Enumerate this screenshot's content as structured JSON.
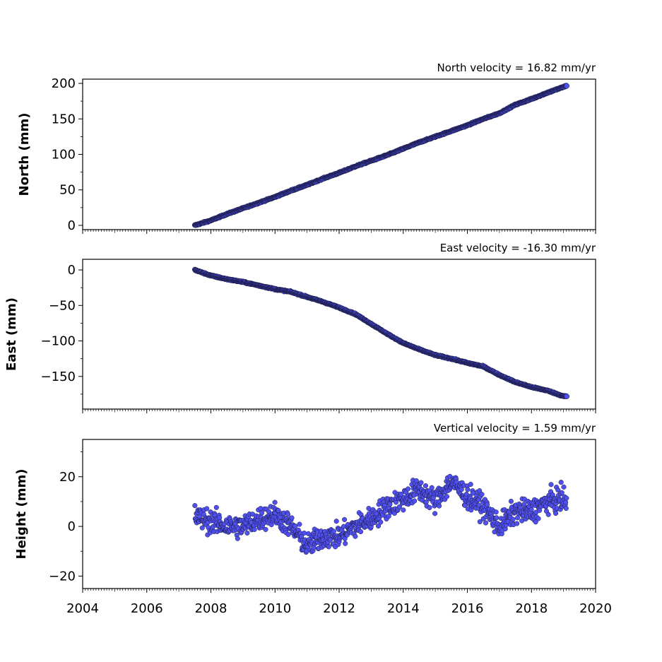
{
  "chart_data": [
    {
      "type": "scatter",
      "title": "North velocity = 16.82 mm/yr",
      "xlabel": "",
      "ylabel": "North (mm)",
      "xlim": [
        2004,
        2020
      ],
      "ylim": [
        -6,
        206
      ],
      "yticks": [
        0,
        50,
        100,
        150,
        200
      ],
      "ytick_labels": [
        "0",
        "50",
        "100",
        "150",
        "200"
      ],
      "grid": false,
      "marker_color": "#5050f0",
      "marker_edge": "#1a1a40",
      "series": [
        {
          "x": [
            2007.5,
            2008.0,
            2008.5,
            2009.0,
            2009.5,
            2010.0,
            2010.5,
            2011.0,
            2011.5,
            2012.0,
            2012.5,
            2013.0,
            2013.5,
            2014.0,
            2014.5,
            2015.0,
            2015.5,
            2016.0,
            2016.5,
            2017.0,
            2017.5,
            2018.0,
            2018.5,
            2019.0,
            2019.1
          ],
          "y": [
            0,
            7,
            16,
            24,
            32,
            40,
            49,
            57,
            66,
            74,
            83,
            91,
            99,
            108,
            117,
            125,
            133,
            141,
            150,
            158,
            170,
            178,
            187,
            195,
            197
          ]
        }
      ]
    },
    {
      "type": "scatter",
      "title": "East velocity = -16.30 mm/yr",
      "xlabel": "",
      "ylabel": "East (mm)",
      "xlim": [
        2004,
        2020
      ],
      "ylim": [
        -196,
        15
      ],
      "yticks": [
        0,
        -50,
        -100,
        -150
      ],
      "ytick_labels": [
        "0",
        "−50",
        "−100",
        "−150"
      ],
      "grid": false,
      "marker_color": "#5050f0",
      "marker_edge": "#1a1a40",
      "series": [
        {
          "x": [
            2007.5,
            2008.0,
            2008.5,
            2009.0,
            2009.5,
            2010.0,
            2010.5,
            2011.0,
            2011.5,
            2012.0,
            2012.5,
            2013.0,
            2013.5,
            2014.0,
            2014.5,
            2015.0,
            2015.5,
            2016.0,
            2016.5,
            2017.0,
            2017.5,
            2018.0,
            2018.5,
            2019.0,
            2019.1
          ],
          "y": [
            0,
            -8,
            -13,
            -17,
            -22,
            -27,
            -31,
            -38,
            -45,
            -53,
            -62,
            -76,
            -90,
            -103,
            -112,
            -120,
            -125,
            -131,
            -136,
            -148,
            -158,
            -165,
            -170,
            -178,
            -178
          ]
        }
      ]
    },
    {
      "type": "scatter",
      "title": "Vertical velocity = 1.59 mm/yr",
      "xlabel": "",
      "ylabel": "Height (mm)",
      "xlim": [
        2004,
        2020
      ],
      "xticks": [
        2004,
        2006,
        2008,
        2010,
        2012,
        2014,
        2016,
        2018,
        2020
      ],
      "xtick_labels": [
        "2004",
        "2006",
        "2008",
        "2010",
        "2012",
        "2014",
        "2016",
        "2018",
        "2020"
      ],
      "ylim": [
        -25,
        35
      ],
      "yticks": [
        20,
        0,
        -20
      ],
      "ytick_labels": [
        "20",
        "0",
        "−20"
      ],
      "grid": false,
      "marker_color": "#5050f0",
      "marker_edge": "#1a1a40",
      "series": [
        {
          "x": [
            2007.5,
            2008.0,
            2008.5,
            2009.0,
            2009.5,
            2010.0,
            2010.5,
            2011.0,
            2011.5,
            2012.0,
            2012.5,
            2013.0,
            2013.5,
            2014.0,
            2014.5,
            2015.0,
            2015.5,
            2016.0,
            2016.5,
            2017.0,
            2017.5,
            2018.0,
            2018.5,
            2019.0,
            2019.1
          ],
          "y": [
            4,
            2,
            0,
            0,
            3,
            5,
            0,
            -8,
            -4,
            -4,
            0,
            3,
            8,
            11,
            15,
            10,
            18,
            12,
            8,
            0,
            6,
            6,
            10,
            11,
            8
          ],
          "spread": 8
        }
      ]
    }
  ]
}
